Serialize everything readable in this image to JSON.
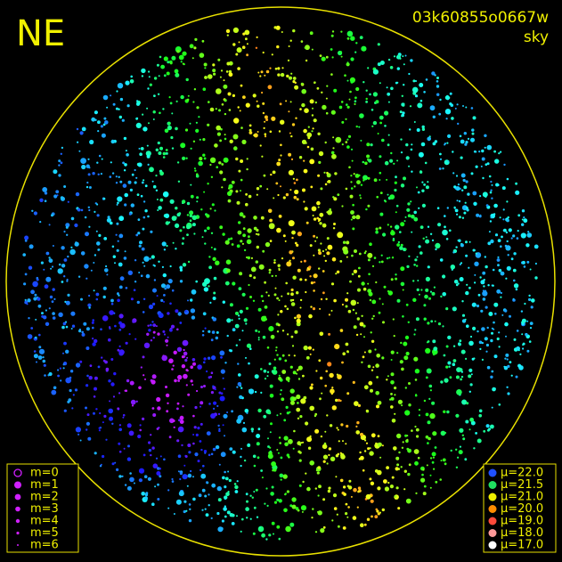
{
  "corner_label": "NE",
  "frame_id": "03k60855o0667w",
  "mode": "sky",
  "magnitude_legend": {
    "color": "#d020ff",
    "items": [
      "m=0",
      "m=1",
      "m=2",
      "m=3",
      "m=4",
      "m=5",
      "m=6"
    ]
  },
  "brightness_legend": [
    {
      "label": "μ=22.0",
      "color": "#2050ff"
    },
    {
      "label": "μ=21.5",
      "color": "#20e060"
    },
    {
      "label": "μ=21.0",
      "color": "#f0f000"
    },
    {
      "label": "μ=20.0",
      "color": "#ff8c00"
    },
    {
      "label": "μ=19.0",
      "color": "#ff4a3a"
    },
    {
      "label": "μ=18.0",
      "color": "#ff9a9a"
    },
    {
      "label": "μ=17.0",
      "color": "#ffffff"
    }
  ]
}
